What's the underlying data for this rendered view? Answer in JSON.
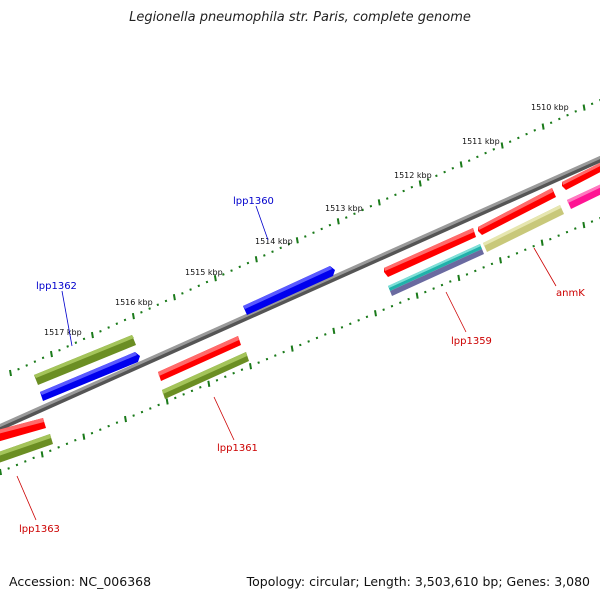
{
  "title": "Legionella pneumophila str. Paris, complete genome",
  "footer": {
    "accession": "Accession: NC_006368",
    "topology": "Topology: circular; Length: 3,503,610 bp; Genes: 3,080"
  },
  "colors": {
    "backbone": "#808080",
    "tick": "#1a7a1a",
    "label_forward": "#0000cc",
    "label_reverse": "#cc0000",
    "label_line_forward": "#0000cc",
    "label_line_reverse": "#cc0000"
  },
  "ticks": [
    {
      "label": "1510 kbp"
    },
    {
      "label": "1511 kbp"
    },
    {
      "label": "1512 kbp"
    },
    {
      "label": "1513 kbp"
    },
    {
      "label": "1514 kbp"
    },
    {
      "label": "1515 kbp"
    },
    {
      "label": "1516 kbp"
    },
    {
      "label": "1517 kbp"
    }
  ],
  "gene_labels": [
    {
      "name": "lpp1360",
      "strand": "forward"
    },
    {
      "name": "lpp1362",
      "strand": "forward"
    },
    {
      "name": "lpp1359",
      "strand": "reverse"
    },
    {
      "name": "anmK",
      "strand": "reverse"
    },
    {
      "name": "lpp1361",
      "strand": "reverse"
    },
    {
      "name": "lpp1363",
      "strand": "reverse"
    }
  ],
  "feature_colors": {
    "cds_red": "#ff0000",
    "cds_blue": "#0000ee",
    "olive": "#6b8e23",
    "khaki": "#c8c87a",
    "cyan": "#20b2aa",
    "slate": "#6a6aa0",
    "magenta": "#ff1493"
  }
}
